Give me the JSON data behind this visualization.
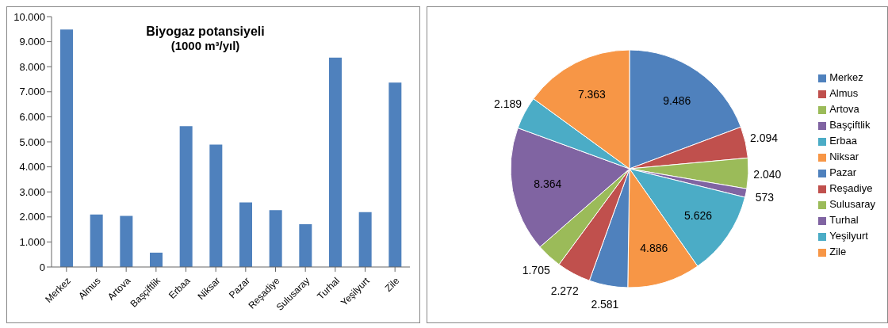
{
  "chart_data": [
    {
      "type": "bar",
      "title": "Biyogaz potansiyeli",
      "subtitle": "(1000 m³/yıl)",
      "categories": [
        "Merkez",
        "Almus",
        "Artova",
        "Başçiftlik",
        "Erbaa",
        "Niksar",
        "Pazar",
        "Reşadiye",
        "Sulusaray",
        "Turhal",
        "Yeşilyurt",
        "Zile"
      ],
      "values": [
        9486,
        2094,
        2040,
        573,
        5626,
        4886,
        2581,
        2272,
        1705,
        8364,
        2189,
        7363
      ],
      "color": "#4f81bd",
      "ylim": [
        0,
        10000
      ],
      "yticks": [
        {
          "value": 0,
          "label": "0"
        },
        {
          "value": 1000,
          "label": "1.000"
        },
        {
          "value": 2000,
          "label": "2.000"
        },
        {
          "value": 3000,
          "label": "3.000"
        },
        {
          "value": 4000,
          "label": "4.000"
        },
        {
          "value": 5000,
          "label": "5.000"
        },
        {
          "value": 6000,
          "label": "6.000"
        },
        {
          "value": 7000,
          "label": "7.000"
        },
        {
          "value": 8000,
          "label": "8.000"
        },
        {
          "value": 9000,
          "label": "9.000"
        },
        {
          "value": 10000,
          "label": "10.000"
        }
      ]
    },
    {
      "type": "pie",
      "categories": [
        "Merkez",
        "Almus",
        "Artova",
        "Başçiftlik",
        "Erbaa",
        "Niksar",
        "Pazar",
        "Reşadiye",
        "Sulusaray",
        "Turhal",
        "Yeşilyurt",
        "Zile"
      ],
      "values": [
        9486,
        2094,
        2040,
        573,
        5626,
        4886,
        2581,
        2272,
        1705,
        8364,
        2189,
        7363
      ],
      "value_labels": [
        "9.486",
        "2.094",
        "2.040",
        "573",
        "5.626",
        "4.886",
        "2.581",
        "2.272",
        "1.705",
        "8.364",
        "2.189",
        "7.363"
      ],
      "colors": [
        "#4f81bd",
        "#c0504d",
        "#9bbb59",
        "#8064a2",
        "#4bacc6",
        "#f79646",
        "#4f81bd",
        "#c0504d",
        "#9bbb59",
        "#8064a2",
        "#4bacc6",
        "#f79646"
      ],
      "legend": "right"
    }
  ]
}
